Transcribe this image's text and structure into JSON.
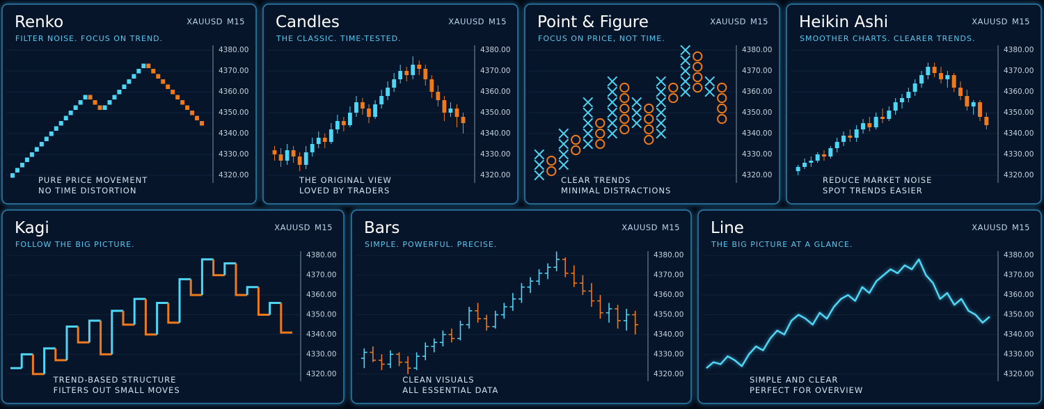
{
  "chart_data": [
    {
      "type": "renko",
      "title": "Renko",
      "subtitle": "FILTER NOISE. FOCUS ON TREND.",
      "symbol": "XAUUSD",
      "timeframe": "M15",
      "ylim": [
        4315,
        4385
      ],
      "yticks": [
        {
          "value": 4320,
          "label": "4320.00"
        },
        {
          "value": 4330,
          "label": "4330.00"
        },
        {
          "value": 4340,
          "label": "4340.00"
        },
        {
          "value": 4350,
          "label": "4350.00"
        },
        {
          "value": 4360,
          "label": "4360.00"
        },
        {
          "value": 4370,
          "label": "4370.00"
        },
        {
          "value": 4380,
          "label": "4380.00"
        }
      ],
      "grid": true,
      "up_color": "#4fd6f5",
      "down_color": "#ee7a1c",
      "values": [
        4321,
        4323.5,
        4326,
        4328.5,
        4331,
        4333.5,
        4336,
        4338.5,
        4341,
        4343.5,
        4346,
        4348.5,
        4351,
        4353.5,
        4356,
        4358.5,
        4356,
        4353.5,
        4351,
        4353.5,
        4356,
        4358.5,
        4361,
        4363.5,
        4366,
        4368.5,
        4371,
        4373.5,
        4371,
        4368.5,
        4366,
        4363.5,
        4361,
        4358.5,
        4356,
        4353.5,
        4351,
        4348.5,
        4346,
        4343.5
      ],
      "annotations": [
        "PURE PRICE MOVEMENT",
        "NO TIME DISTORTION"
      ]
    },
    {
      "type": "candlestick",
      "title": "Candles",
      "subtitle": "THE CLASSIC. TIME-TESTED.",
      "symbol": "XAUUSD",
      "timeframe": "M15",
      "ylim": [
        4315,
        4385
      ],
      "yticks": [
        {
          "value": 4320,
          "label": "4320.00"
        },
        {
          "value": 4330,
          "label": "4330.00"
        },
        {
          "value": 4340,
          "label": "4340.00"
        },
        {
          "value": 4350,
          "label": "4350.00"
        },
        {
          "value": 4360,
          "label": "4360.00"
        },
        {
          "value": 4370,
          "label": "4370.00"
        },
        {
          "value": 4380,
          "label": "4380.00"
        }
      ],
      "grid": true,
      "up_color": "#4fd6f5",
      "down_color": "#ee7a1c",
      "ohlc": [
        [
          4332,
          4334,
          4327,
          4330
        ],
        [
          4330,
          4333,
          4324,
          4327
        ],
        [
          4327,
          4335,
          4325,
          4332
        ],
        [
          4332,
          4334,
          4326,
          4329
        ],
        [
          4329,
          4331,
          4322,
          4325
        ],
        [
          4325,
          4334,
          4323,
          4331
        ],
        [
          4331,
          4338,
          4329,
          4335
        ],
        [
          4335,
          4341,
          4333,
          4338
        ],
        [
          4338,
          4340,
          4333,
          4336
        ],
        [
          4336,
          4345,
          4335,
          4342
        ],
        [
          4342,
          4349,
          4340,
          4346
        ],
        [
          4346,
          4348,
          4341,
          4344
        ],
        [
          4344,
          4353,
          4343,
          4350
        ],
        [
          4350,
          4358,
          4348,
          4355
        ],
        [
          4355,
          4357,
          4349,
          4352
        ],
        [
          4352,
          4354,
          4345,
          4348
        ],
        [
          4348,
          4356,
          4347,
          4354
        ],
        [
          4354,
          4361,
          4352,
          4358
        ],
        [
          4358,
          4365,
          4356,
          4362
        ],
        [
          4362,
          4369,
          4360,
          4366
        ],
        [
          4366,
          4373,
          4364,
          4370
        ],
        [
          4370,
          4372,
          4365,
          4368
        ],
        [
          4368,
          4377,
          4366,
          4373
        ],
        [
          4373,
          4375,
          4368,
          4371
        ],
        [
          4371,
          4373,
          4363,
          4366
        ],
        [
          4366,
          4368,
          4357,
          4360
        ],
        [
          4360,
          4363,
          4353,
          4356
        ],
        [
          4356,
          4358,
          4346,
          4350
        ],
        [
          4350,
          4355,
          4348,
          4352
        ],
        [
          4352,
          4354,
          4343,
          4348
        ],
        [
          4348,
          4350,
          4340,
          4345
        ]
      ],
      "annotations": [
        "THE ORIGINAL VIEW",
        "LOVED BY TRADERS"
      ]
    },
    {
      "type": "point_and_figure",
      "title": "Point & Figure",
      "subtitle": "FOCUS ON PRICE, NOT TIME.",
      "symbol": "XAUUSD",
      "timeframe": "M15",
      "ylim": [
        4315,
        4385
      ],
      "yticks": [
        {
          "value": 4320,
          "label": "4320.00"
        },
        {
          "value": 4330,
          "label": "4330.00"
        },
        {
          "value": 4340,
          "label": "4340.00"
        },
        {
          "value": 4350,
          "label": "4350.00"
        },
        {
          "value": 4360,
          "label": "4360.00"
        },
        {
          "value": 4370,
          "label": "4370.00"
        },
        {
          "value": 4380,
          "label": "4380.00"
        }
      ],
      "grid": true,
      "up_color": "#4fd6f5",
      "down_color": "#ee7a1c",
      "columns": [
        {
          "kind": "x",
          "boxes": [
            4320,
            4325,
            4330
          ]
        },
        {
          "kind": "o",
          "boxes": [
            4327,
            4322
          ]
        },
        {
          "kind": "x",
          "boxes": [
            4325,
            4330,
            4335,
            4340
          ]
        },
        {
          "kind": "o",
          "boxes": [
            4337,
            4332
          ]
        },
        {
          "kind": "x",
          "boxes": [
            4335,
            4340,
            4345,
            4350,
            4355
          ]
        },
        {
          "kind": "o",
          "boxes": [
            4345,
            4340,
            4335
          ]
        },
        {
          "kind": "x",
          "boxes": [
            4340,
            4345,
            4350,
            4355,
            4360,
            4365
          ]
        },
        {
          "kind": "o",
          "boxes": [
            4362,
            4357,
            4352,
            4347,
            4342
          ]
        },
        {
          "kind": "x",
          "boxes": [
            4345,
            4350,
            4355
          ]
        },
        {
          "kind": "o",
          "boxes": [
            4352,
            4347,
            4342,
            4337
          ]
        },
        {
          "kind": "x",
          "boxes": [
            4340,
            4345,
            4350,
            4355,
            4360,
            4365
          ]
        },
        {
          "kind": "o",
          "boxes": [
            4362,
            4357
          ]
        },
        {
          "kind": "x",
          "boxes": [
            4360,
            4365,
            4370,
            4375,
            4380
          ]
        },
        {
          "kind": "o",
          "boxes": [
            4377,
            4372,
            4367,
            4362
          ]
        },
        {
          "kind": "x",
          "boxes": [
            4360,
            4365
          ]
        },
        {
          "kind": "o",
          "boxes": [
            4362,
            4357,
            4352,
            4347
          ]
        }
      ],
      "annotations": [
        "CLEAR TRENDS",
        "MINIMAL DISTRACTIONS"
      ]
    },
    {
      "type": "heikin_ashi",
      "title": "Heikin Ashi",
      "subtitle": "SMOOTHER CHARTS. CLEARER TRENDS.",
      "symbol": "XAUUSD",
      "timeframe": "M15",
      "ylim": [
        4315,
        4385
      ],
      "yticks": [
        {
          "value": 4320,
          "label": "4320.00"
        },
        {
          "value": 4330,
          "label": "4330.00"
        },
        {
          "value": 4340,
          "label": "4340.00"
        },
        {
          "value": 4350,
          "label": "4350.00"
        },
        {
          "value": 4360,
          "label": "4360.00"
        },
        {
          "value": 4370,
          "label": "4370.00"
        },
        {
          "value": 4380,
          "label": "4380.00"
        }
      ],
      "grid": true,
      "up_color": "#4fd6f5",
      "down_color": "#ee7a1c",
      "ohlc": [
        [
          4322,
          4325,
          4320,
          4324
        ],
        [
          4324,
          4328,
          4323,
          4326
        ],
        [
          4326,
          4329,
          4324,
          4327
        ],
        [
          4327,
          4331,
          4326,
          4330
        ],
        [
          4330,
          4332,
          4327,
          4329
        ],
        [
          4329,
          4334,
          4328,
          4333
        ],
        [
          4333,
          4338,
          4331,
          4336
        ],
        [
          4336,
          4341,
          4334,
          4339
        ],
        [
          4339,
          4342,
          4336,
          4338
        ],
        [
          4338,
          4344,
          4336,
          4342
        ],
        [
          4342,
          4347,
          4340,
          4345
        ],
        [
          4345,
          4348,
          4341,
          4343
        ],
        [
          4343,
          4350,
          4342,
          4348
        ],
        [
          4348,
          4352,
          4345,
          4347
        ],
        [
          4347,
          4353,
          4346,
          4351
        ],
        [
          4351,
          4357,
          4349,
          4355
        ],
        [
          4355,
          4359,
          4352,
          4357
        ],
        [
          4357,
          4362,
          4355,
          4360
        ],
        [
          4360,
          4366,
          4358,
          4364
        ],
        [
          4364,
          4370,
          4362,
          4368
        ],
        [
          4368,
          4374,
          4366,
          4372
        ],
        [
          4372,
          4374,
          4367,
          4369
        ],
        [
          4369,
          4372,
          4364,
          4366
        ],
        [
          4366,
          4370,
          4362,
          4368
        ],
        [
          4368,
          4369,
          4360,
          4362
        ],
        [
          4362,
          4365,
          4356,
          4358
        ],
        [
          4358,
          4361,
          4351,
          4353
        ],
        [
          4353,
          4356,
          4349,
          4355
        ],
        [
          4355,
          4356,
          4346,
          4348
        ],
        [
          4348,
          4350,
          4342,
          4344
        ]
      ],
      "annotations": [
        "REDUCE MARKET NOISE",
        "SPOT TRENDS EASIER"
      ]
    },
    {
      "type": "kagi",
      "title": "Kagi",
      "subtitle": "FOLLOW THE BIG PICTURE.",
      "symbol": "XAUUSD",
      "timeframe": "M15",
      "ylim": [
        4315,
        4385
      ],
      "yticks": [
        {
          "value": 4320,
          "label": "4320.00"
        },
        {
          "value": 4330,
          "label": "4330.00"
        },
        {
          "value": 4340,
          "label": "4340.00"
        },
        {
          "value": 4350,
          "label": "4350.00"
        },
        {
          "value": 4360,
          "label": "4360.00"
        },
        {
          "value": 4370,
          "label": "4370.00"
        },
        {
          "value": 4380,
          "label": "4380.00"
        }
      ],
      "grid": true,
      "up_color": "#4fd6f5",
      "down_color": "#ee7a1c",
      "values": [
        4323,
        4330,
        4320,
        4333,
        4327,
        4344,
        4336,
        4347,
        4330,
        4352,
        4345,
        4358,
        4340,
        4356,
        4346,
        4368,
        4360,
        4378,
        4370,
        4376,
        4360,
        4364,
        4350,
        4356,
        4341
      ],
      "annotations": [
        "TREND-BASED STRUCTURE",
        "FILTERS OUT SMALL MOVES"
      ]
    },
    {
      "type": "ohlc",
      "title": "Bars",
      "subtitle": "SIMPLE. POWERFUL. PRECISE.",
      "symbol": "XAUUSD",
      "timeframe": "M15",
      "ylim": [
        4315,
        4385
      ],
      "yticks": [
        {
          "value": 4320,
          "label": "4320.00"
        },
        {
          "value": 4330,
          "label": "4330.00"
        },
        {
          "value": 4340,
          "label": "4340.00"
        },
        {
          "value": 4350,
          "label": "4350.00"
        },
        {
          "value": 4360,
          "label": "4360.00"
        },
        {
          "value": 4370,
          "label": "4370.00"
        },
        {
          "value": 4380,
          "label": "4380.00"
        }
      ],
      "grid": true,
      "up_color": "#4fd6f5",
      "down_color": "#ee7a1c",
      "ohlc": [
        [
          4328,
          4333,
          4323,
          4331
        ],
        [
          4331,
          4334,
          4326,
          4327
        ],
        [
          4327,
          4330,
          4322,
          4325
        ],
        [
          4325,
          4332,
          4323,
          4330
        ],
        [
          4330,
          4331,
          4324,
          4326
        ],
        [
          4326,
          4329,
          4320,
          4323
        ],
        [
          4323,
          4331,
          4322,
          4329
        ],
        [
          4329,
          4336,
          4327,
          4334
        ],
        [
          4334,
          4338,
          4331,
          4336
        ],
        [
          4336,
          4342,
          4334,
          4340
        ],
        [
          4340,
          4343,
          4336,
          4338
        ],
        [
          4338,
          4347,
          4337,
          4345
        ],
        [
          4345,
          4354,
          4343,
          4352
        ],
        [
          4352,
          4356,
          4346,
          4348
        ],
        [
          4348,
          4350,
          4342,
          4344
        ],
        [
          4344,
          4352,
          4343,
          4350
        ],
        [
          4350,
          4356,
          4348,
          4354
        ],
        [
          4354,
          4361,
          4352,
          4358
        ],
        [
          4358,
          4366,
          4356,
          4364
        ],
        [
          4364,
          4369,
          4361,
          4367
        ],
        [
          4367,
          4373,
          4365,
          4371
        ],
        [
          4371,
          4376,
          4368,
          4374
        ],
        [
          4374,
          4382,
          4372,
          4378
        ],
        [
          4378,
          4379,
          4369,
          4371
        ],
        [
          4371,
          4375,
          4364,
          4366
        ],
        [
          4366,
          4370,
          4360,
          4362
        ],
        [
          4362,
          4366,
          4354,
          4357
        ],
        [
          4357,
          4360,
          4348,
          4351
        ],
        [
          4351,
          4356,
          4346,
          4353
        ],
        [
          4353,
          4355,
          4343,
          4347
        ],
        [
          4347,
          4353,
          4342,
          4350
        ],
        [
          4350,
          4352,
          4340,
          4345
        ]
      ],
      "annotations": [
        "CLEAN VISUALS",
        "ALL ESSENTIAL DATA"
      ]
    },
    {
      "type": "line",
      "title": "Line",
      "subtitle": "THE BIG PICTURE AT A GLANCE.",
      "symbol": "XAUUSD",
      "timeframe": "M15",
      "ylim": [
        4315,
        4385
      ],
      "yticks": [
        {
          "value": 4320,
          "label": "4320.00"
        },
        {
          "value": 4330,
          "label": "4330.00"
        },
        {
          "value": 4340,
          "label": "4340.00"
        },
        {
          "value": 4350,
          "label": "4350.00"
        },
        {
          "value": 4360,
          "label": "4360.00"
        },
        {
          "value": 4370,
          "label": "4370.00"
        },
        {
          "value": 4380,
          "label": "4380.00"
        }
      ],
      "grid": true,
      "color": "#4fd6f5",
      "values": [
        4323,
        4326,
        4325,
        4329,
        4327,
        4324,
        4330,
        4334,
        4332,
        4338,
        4342,
        4340,
        4347,
        4350,
        4348,
        4345,
        4351,
        4348,
        4354,
        4358,
        4360,
        4357,
        4364,
        4361,
        4367,
        4370,
        4373,
        4371,
        4375,
        4373,
        4378,
        4370,
        4366,
        4358,
        4361,
        4355,
        4358,
        4352,
        4350,
        4346,
        4349
      ],
      "annotations": [
        "SIMPLE AND CLEAR",
        "PERFECT FOR OVERVIEW"
      ]
    }
  ]
}
